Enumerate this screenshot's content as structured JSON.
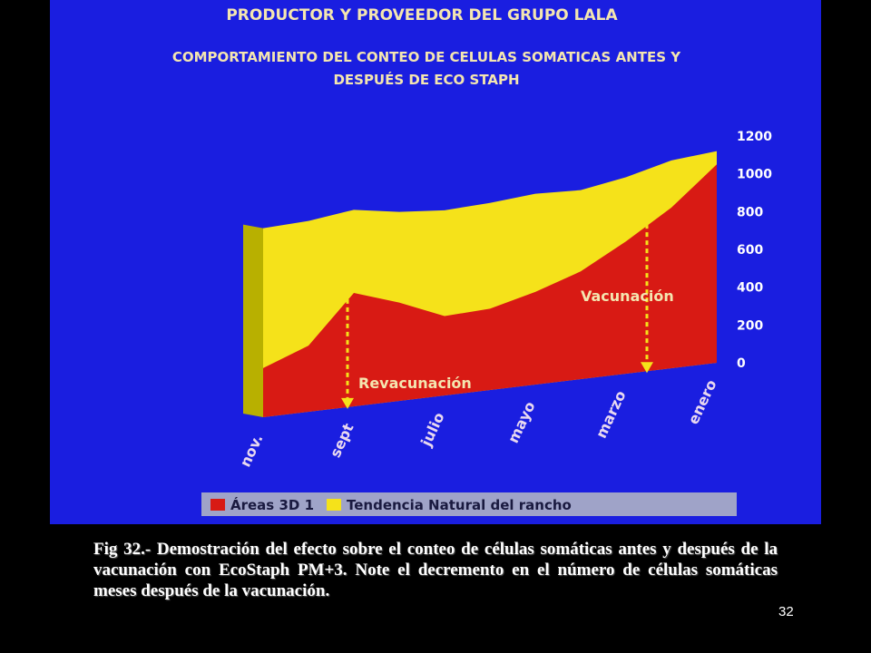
{
  "chart_data": {
    "type": "area",
    "title": "PRODUCTOR Y PROVEEDOR DEL GRUPO LALA",
    "subtitle": "COMPORTAMIENTO DEL CONTEO DE CELULAS SOMATICAS ANTES Y DESPUÉS DE ECO STAPH",
    "categories": [
      "nov.",
      null,
      "sept",
      null,
      "julio",
      null,
      "mayo",
      null,
      "marzo",
      null,
      "enero"
    ],
    "series": [
      {
        "name": "Tendencia Natural del rancho",
        "color": "#f5e21a",
        "values": [
          1000,
          1010,
          1040,
          1000,
          980,
          990,
          1010,
          1000,
          1040,
          1100,
          1120
        ]
      },
      {
        "name": "Áreas 3D 1",
        "color": "#d81a14",
        "values": [
          260,
          350,
          600,
          520,
          420,
          430,
          490,
          570,
          700,
          850,
          1050
        ]
      }
    ],
    "ylim": [
      0,
      1200
    ],
    "yticks": [
      0,
      200,
      400,
      600,
      800,
      1000,
      1200
    ],
    "annotations": [
      "Revacunación",
      "Vacunación"
    ]
  },
  "caption": "Fig 32.- Demostración  del efecto sobre el conteo de células somáticas antes y después de la vacunación con EcoStaph PM+3. Note el decremento en el número de células somáticas meses después de la vacunación.",
  "page_number": "32"
}
